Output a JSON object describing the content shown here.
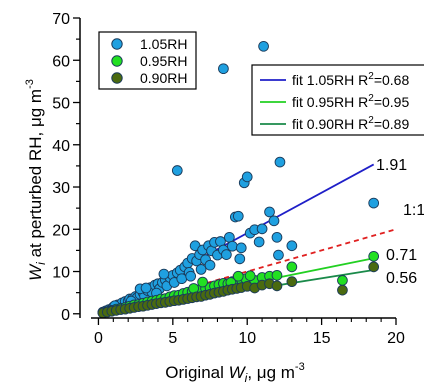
{
  "chart_data": {
    "type": "scatter",
    "xlabel_prefix": "Original ",
    "xlabel_var": "W",
    "xlabel_sub": "i",
    "xlabel_units": ", μg m",
    "xlabel_exp": "-3",
    "ylabel_var": "W",
    "ylabel_sub": "i",
    "ylabel_text": " at perturbed RH, μg m",
    "ylabel_exp": "-3",
    "xlim": [
      -0.5,
      20
    ],
    "ylim": [
      -1,
      70
    ],
    "xticks": [
      0,
      5,
      10,
      15,
      20
    ],
    "yticks": [
      0,
      10,
      20,
      30,
      40,
      50,
      60,
      70
    ],
    "grid": false,
    "scatter_series": [
      {
        "name": "1.05RH",
        "color": "#1fa0e0",
        "points": [
          [
            0.3,
            0.4
          ],
          [
            0.5,
            0.7
          ],
          [
            0.7,
            1.0
          ],
          [
            0.9,
            1.2
          ],
          [
            1.0,
            1.6
          ],
          [
            1.2,
            1.5
          ],
          [
            1.3,
            2.1
          ],
          [
            1.5,
            1.8
          ],
          [
            1.6,
            2.6
          ],
          [
            1.8,
            2.9
          ],
          [
            2.0,
            3.0
          ],
          [
            2.1,
            3.5
          ],
          [
            2.3,
            3.6
          ],
          [
            2.5,
            4.1
          ],
          [
            2.6,
            3.8
          ],
          [
            2.8,
            4.6
          ],
          [
            3.0,
            5.0
          ],
          [
            3.1,
            4.2
          ],
          [
            3.3,
            5.5
          ],
          [
            3.5,
            6.2
          ],
          [
            3.6,
            5.1
          ],
          [
            3.8,
            6.8
          ],
          [
            4.0,
            7.1
          ],
          [
            4.1,
            5.9
          ],
          [
            4.3,
            7.4
          ],
          [
            4.5,
            8.0
          ],
          [
            4.6,
            6.6
          ],
          [
            4.8,
            8.6
          ],
          [
            5.0,
            9.1
          ],
          [
            5.1,
            7.4
          ],
          [
            5.3,
            9.7
          ],
          [
            5.5,
            10.3
          ],
          [
            5.6,
            8.3
          ],
          [
            5.8,
            11.1
          ],
          [
            6.0,
            12.0
          ],
          [
            6.1,
            9.8
          ],
          [
            6.3,
            13.1
          ],
          [
            6.5,
            16.1
          ],
          [
            6.6,
            12.5
          ],
          [
            6.8,
            14.0
          ],
          [
            7.0,
            15.1
          ],
          [
            7.2,
            12.8
          ],
          [
            7.4,
            16.1
          ],
          [
            7.6,
            14.9
          ],
          [
            7.8,
            16.9
          ],
          [
            8.0,
            13.9
          ],
          [
            8.2,
            17.1
          ],
          [
            8.4,
            15.1
          ],
          [
            8.6,
            14.0
          ],
          [
            8.8,
            18.1
          ],
          [
            9.0,
            16.0
          ],
          [
            9.2,
            22.9
          ],
          [
            9.4,
            23.1
          ],
          [
            9.6,
            15.6
          ],
          [
            9.8,
            31.0
          ],
          [
            10.0,
            32.4
          ],
          [
            10.2,
            19.1
          ],
          [
            10.5,
            19.9
          ],
          [
            11.0,
            20.1
          ],
          [
            11.5,
            24.1
          ],
          [
            11.8,
            22.0
          ],
          [
            12.0,
            18.1
          ],
          [
            12.2,
            35.9
          ],
          [
            13.0,
            16.1
          ],
          [
            2.8,
            5.9
          ],
          [
            3.2,
            6.1
          ],
          [
            5.3,
            33.9
          ],
          [
            8.4,
            58.0
          ],
          [
            11.1,
            63.3
          ],
          [
            18.5,
            26.2
          ],
          [
            2.2,
            3.0
          ],
          [
            4.4,
            9.4
          ],
          [
            6.9,
            10.5
          ],
          [
            7.5,
            11.5
          ],
          [
            9.5,
            13.0
          ],
          [
            10.8,
            17.0
          ],
          [
            12.1,
            13.9
          ],
          [
            1.1,
            1.9
          ],
          [
            3.9,
            4.9
          ],
          [
            6.2,
            8.9
          ]
        ]
      },
      {
        "name": "0.95RH",
        "color": "#22e022",
        "points": [
          [
            0.3,
            0.3
          ],
          [
            0.6,
            0.5
          ],
          [
            0.9,
            0.8
          ],
          [
            1.2,
            1.1
          ],
          [
            1.5,
            1.3
          ],
          [
            1.8,
            1.5
          ],
          [
            2.1,
            1.8
          ],
          [
            2.4,
            2.1
          ],
          [
            2.7,
            2.2
          ],
          [
            3.0,
            2.5
          ],
          [
            3.3,
            2.8
          ],
          [
            3.6,
            3.0
          ],
          [
            3.9,
            3.2
          ],
          [
            4.2,
            3.5
          ],
          [
            4.5,
            3.6
          ],
          [
            4.8,
            4.0
          ],
          [
            5.1,
            4.3
          ],
          [
            5.4,
            4.4
          ],
          [
            5.7,
            4.8
          ],
          [
            6.0,
            5.1
          ],
          [
            6.3,
            5.3
          ],
          [
            6.6,
            5.5
          ],
          [
            6.9,
            5.9
          ],
          [
            7.2,
            6.0
          ],
          [
            7.5,
            6.2
          ],
          [
            7.8,
            6.6
          ],
          [
            8.1,
            6.9
          ],
          [
            8.4,
            7.2
          ],
          [
            8.7,
            7.1
          ],
          [
            9.0,
            7.6
          ],
          [
            9.3,
            7.9
          ],
          [
            9.6,
            8.1
          ],
          [
            9.9,
            8.3
          ],
          [
            10.5,
            7.9
          ],
          [
            11.0,
            8.6
          ],
          [
            11.5,
            8.9
          ],
          [
            12.0,
            9.1
          ],
          [
            13.0,
            11.1
          ],
          [
            16.4,
            7.9
          ],
          [
            18.5,
            13.6
          ],
          [
            7.0,
            7.5
          ],
          [
            8.9,
            7.4
          ],
          [
            10.2,
            9.0
          ],
          [
            6.4,
            6.0
          ],
          [
            9.4,
            8.9
          ]
        ]
      },
      {
        "name": "0.90RH",
        "color": "#4a6a10",
        "points": [
          [
            0.3,
            0.2
          ],
          [
            0.6,
            0.4
          ],
          [
            0.9,
            0.6
          ],
          [
            1.2,
            0.8
          ],
          [
            1.5,
            1.0
          ],
          [
            1.8,
            1.1
          ],
          [
            2.1,
            1.3
          ],
          [
            2.4,
            1.5
          ],
          [
            2.7,
            1.7
          ],
          [
            3.0,
            1.8
          ],
          [
            3.3,
            2.0
          ],
          [
            3.6,
            2.2
          ],
          [
            3.9,
            2.4
          ],
          [
            4.2,
            2.6
          ],
          [
            4.5,
            2.7
          ],
          [
            4.8,
            2.9
          ],
          [
            5.1,
            3.1
          ],
          [
            5.4,
            3.2
          ],
          [
            5.7,
            3.4
          ],
          [
            6.0,
            3.6
          ],
          [
            6.3,
            3.8
          ],
          [
            6.6,
            4.0
          ],
          [
            6.9,
            4.1
          ],
          [
            7.2,
            4.4
          ],
          [
            7.5,
            4.6
          ],
          [
            7.8,
            4.9
          ],
          [
            8.1,
            5.1
          ],
          [
            8.4,
            5.3
          ],
          [
            8.7,
            5.6
          ],
          [
            9.0,
            5.8
          ],
          [
            9.3,
            6.0
          ],
          [
            9.6,
            6.2
          ],
          [
            10.0,
            6.5
          ],
          [
            10.5,
            6.1
          ],
          [
            11.0,
            6.8
          ],
          [
            11.5,
            7.1
          ],
          [
            12.0,
            6.6
          ],
          [
            13.0,
            7.6
          ],
          [
            16.4,
            5.6
          ],
          [
            18.5,
            11.1
          ]
        ]
      }
    ],
    "fit_lines": [
      {
        "label": "fit 1.05RH R",
        "r2": "=0.68",
        "slope": 1.91,
        "x_end": 18.5,
        "color": "#1f1fc8",
        "dashed": false
      },
      {
        "label": "fit 0.95RH R",
        "r2": "=0.95",
        "slope": 0.71,
        "x_end": 18.5,
        "color": "#22d022",
        "dashed": false
      },
      {
        "label": "fit 0.90RH R",
        "r2": "=0.89",
        "slope": 0.56,
        "x_end": 18.5,
        "color": "#1a8a4a",
        "dashed": false
      },
      {
        "label": "",
        "r2": "",
        "slope": 1.0,
        "x_end": 20,
        "color": "#e02020",
        "dashed": true
      }
    ],
    "annotations": [
      "1.91",
      "1:1",
      "0.71",
      "0.56"
    ],
    "fit_r2_sup": "2"
  },
  "colors": {
    "marker_edge": "#1a3a5a",
    "axis": "#000000"
  }
}
